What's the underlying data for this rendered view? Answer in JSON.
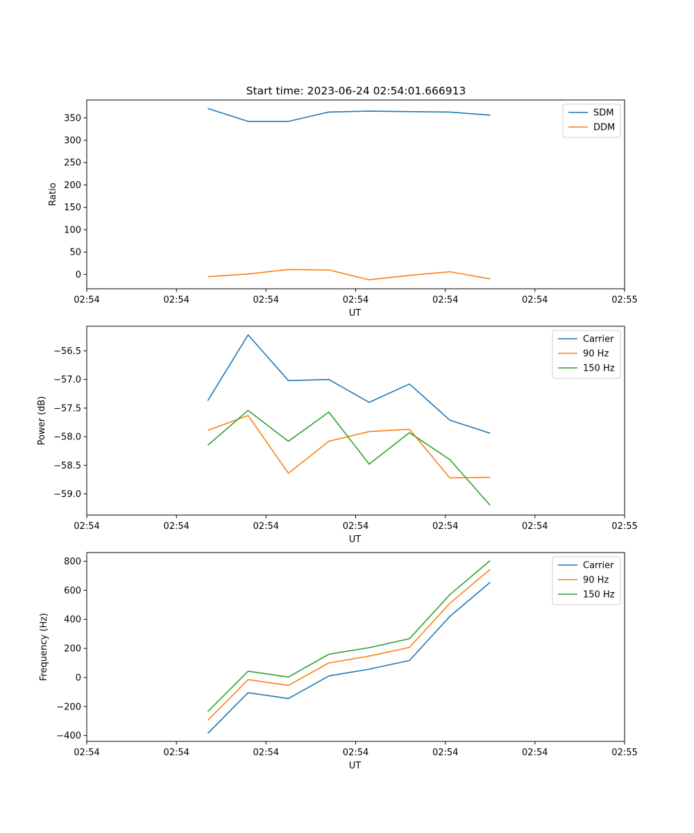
{
  "figure": {
    "title": "Start time: 2023-06-24 02:54:01.666913"
  },
  "chart_data": [
    {
      "type": "line",
      "xlabel": "UT",
      "ylabel": "Ratio",
      "x": [
        0.9,
        1.2,
        1.5,
        1.8,
        2.1,
        2.4,
        2.7,
        3.0
      ],
      "xlim": [
        0.0,
        4.0
      ],
      "xticks": [
        0.0,
        0.667,
        1.333,
        2.0,
        2.667,
        3.333,
        4.0
      ],
      "xtick_labels": [
        "02:54",
        "02:54",
        "02:54",
        "02:54",
        "02:54",
        "02:54",
        "02:55"
      ],
      "ylim": [
        -32,
        390
      ],
      "yticks": [
        0,
        50,
        100,
        150,
        200,
        250,
        300,
        350
      ],
      "ytick_labels": [
        "0",
        "50",
        "100",
        "150",
        "200",
        "250",
        "300",
        "350"
      ],
      "legend_position": "top-right",
      "grid": false,
      "series": [
        {
          "name": "SDM",
          "color": "#1f77b4",
          "values": [
            371,
            342,
            342,
            363,
            365,
            364,
            363,
            356
          ]
        },
        {
          "name": "DDM",
          "color": "#ff7f0e",
          "values": [
            -5,
            1,
            11,
            10,
            -12,
            -2,
            6,
            -10
          ]
        }
      ]
    },
    {
      "type": "line",
      "xlabel": "UT",
      "ylabel": "Power (dB)",
      "x": [
        0.9,
        1.2,
        1.5,
        1.8,
        2.1,
        2.4,
        2.7,
        3.0
      ],
      "xlim": [
        0.0,
        4.0
      ],
      "xticks": [
        0.0,
        0.667,
        1.333,
        2.0,
        2.667,
        3.333,
        4.0
      ],
      "xtick_labels": [
        "02:54",
        "02:54",
        "02:54",
        "02:54",
        "02:54",
        "02:54",
        "02:55"
      ],
      "ylim": [
        -59.37,
        -56.07
      ],
      "yticks": [
        -59.0,
        -58.5,
        -58.0,
        -57.5,
        -57.0,
        -56.5
      ],
      "ytick_labels": [
        "−59.0",
        "−58.5",
        "−58.0",
        "−57.5",
        "−57.0",
        "−56.5"
      ],
      "legend_position": "top-right",
      "grid": false,
      "series": [
        {
          "name": "Carrier",
          "color": "#1f77b4",
          "values": [
            -57.37,
            -56.22,
            -57.02,
            -57.0,
            -57.4,
            -57.08,
            -57.71,
            -57.94
          ]
        },
        {
          "name": "90 Hz",
          "color": "#ff7f0e",
          "values": [
            -57.89,
            -57.63,
            -58.64,
            -58.08,
            -57.91,
            -57.87,
            -58.72,
            -58.71
          ]
        },
        {
          "name": "150 Hz",
          "color": "#2ca02c",
          "values": [
            -58.15,
            -57.54,
            -58.08,
            -57.57,
            -58.48,
            -57.93,
            -58.4,
            -59.2
          ]
        }
      ]
    },
    {
      "type": "line",
      "xlabel": "UT",
      "ylabel": "Frequency (Hz)",
      "x": [
        0.9,
        1.2,
        1.5,
        1.8,
        2.1,
        2.4,
        2.7,
        3.0
      ],
      "xlim": [
        0.0,
        4.0
      ],
      "xticks": [
        0.0,
        0.667,
        1.333,
        2.0,
        2.667,
        3.333,
        4.0
      ],
      "xtick_labels": [
        "02:54",
        "02:54",
        "02:54",
        "02:54",
        "02:54",
        "02:54",
        "02:55"
      ],
      "ylim": [
        -440,
        860
      ],
      "yticks": [
        -400,
        -200,
        0,
        200,
        400,
        600,
        800
      ],
      "ytick_labels": [
        "−400",
        "−200",
        "0",
        "200",
        "400",
        "600",
        "800"
      ],
      "legend_position": "top-right",
      "grid": false,
      "series": [
        {
          "name": "Carrier",
          "color": "#1f77b4",
          "values": [
            -385,
            -105,
            -145,
            10,
            57,
            117,
            420,
            655
          ]
        },
        {
          "name": "90 Hz",
          "color": "#ff7f0e",
          "values": [
            -295,
            -15,
            -55,
            100,
            147,
            207,
            510,
            745
          ]
        },
        {
          "name": "150 Hz",
          "color": "#2ca02c",
          "values": [
            -235,
            43,
            3,
            160,
            205,
            267,
            570,
            805
          ]
        }
      ]
    }
  ]
}
